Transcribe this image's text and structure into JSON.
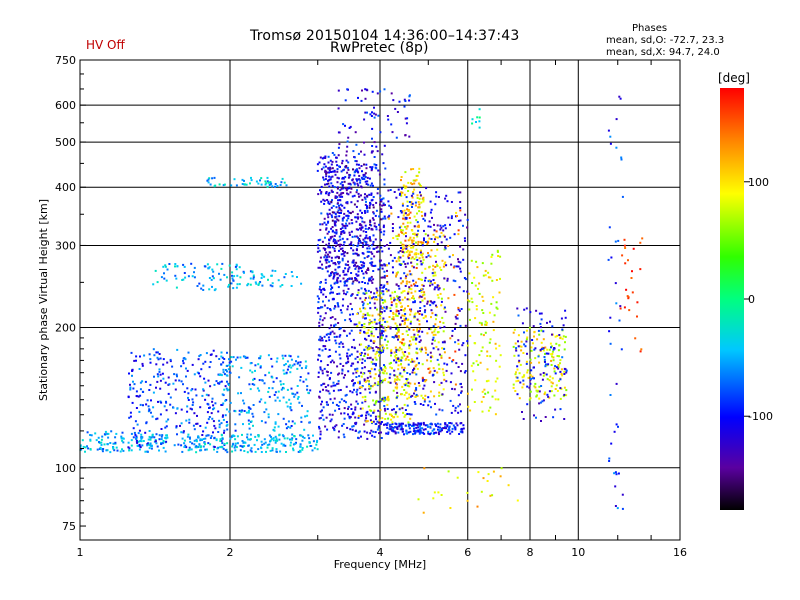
{
  "header": {
    "title_line1": "Tromsø 20150104 14:36:00–14:37:43",
    "title_line2": "RwPretec (8p)",
    "status": "HV Off"
  },
  "phases": {
    "title": "Phases",
    "line1": "mean, sd,O: -72.7, 23.3",
    "line2": "mean, sd,X:  94.7, 24.0"
  },
  "chart_data": {
    "type": "scatter",
    "xlabel": "Frequency [MHz]",
    "ylabel": "Stationary phase Virtual Height [km]",
    "xscale": "log",
    "yscale": "log",
    "xlim": [
      1,
      16
    ],
    "ylim": [
      70,
      750
    ],
    "xticks": [
      1,
      2,
      4,
      6,
      8,
      10,
      16
    ],
    "yticks": [
      75,
      100,
      200,
      300,
      400,
      500,
      600,
      750
    ],
    "grid": true,
    "colorbar": {
      "label": "[deg]",
      "ticks": [
        100,
        0,
        -100
      ],
      "range": [
        -180,
        180
      ]
    },
    "clusters": [
      {
        "x": [
          1.0,
          1.5
        ],
        "y": [
          108,
          120
        ],
        "phase": -60,
        "n": 140
      },
      {
        "x": [
          1.25,
          2.0
        ],
        "y": [
          110,
          180
        ],
        "phase": -95,
        "n": 300
      },
      {
        "x": [
          1.6,
          3.0
        ],
        "y": [
          108,
          118
        ],
        "phase": -55,
        "n": 200
      },
      {
        "x": [
          1.9,
          2.9
        ],
        "y": [
          120,
          175
        ],
        "phase": -70,
        "n": 220
      },
      {
        "x": [
          1.4,
          2.1
        ],
        "y": [
          240,
          275
        ],
        "phase": -60,
        "n": 70
      },
      {
        "x": [
          1.9,
          2.8
        ],
        "y": [
          245,
          265
        ],
        "phase": -55,
        "n": 50
      },
      {
        "x": [
          1.8,
          2.6
        ],
        "y": [
          400,
          420
        ],
        "phase": -50,
        "n": 50
      },
      {
        "x": [
          3.0,
          4.1
        ],
        "y": [
          115,
          480
        ],
        "phase": -115,
        "n": 900
      },
      {
        "x": [
          3.1,
          3.9
        ],
        "y": [
          250,
          450
        ],
        "phase": -125,
        "n": 350
      },
      {
        "x": [
          4.1,
          5.9
        ],
        "y": [
          118,
          125
        ],
        "phase": -105,
        "n": 180
      },
      {
        "x": [
          3.6,
          4.6
        ],
        "y": [
          125,
          240
        ],
        "phase": 85,
        "n": 250
      },
      {
        "x": [
          4.3,
          5.4
        ],
        "y": [
          140,
          320
        ],
        "phase": 95,
        "n": 260
      },
      {
        "x": [
          4.4,
          4.9
        ],
        "y": [
          280,
          440
        ],
        "phase": 100,
        "n": 120
      },
      {
        "x": [
          4.0,
          6.0
        ],
        "y": [
          130,
          400
        ],
        "phase": -120,
        "n": 450
      },
      {
        "x": [
          4.1,
          5.8
        ],
        "y": [
          150,
          360
        ],
        "phase": 130,
        "n": 90
      },
      {
        "x": [
          6.0,
          7.0
        ],
        "y": [
          130,
          300
        ],
        "phase": 85,
        "n": 110
      },
      {
        "x": [
          7.4,
          9.5
        ],
        "y": [
          140,
          200
        ],
        "phase": 90,
        "n": 140
      },
      {
        "x": [
          7.5,
          9.5
        ],
        "y": [
          125,
          220
        ],
        "phase": -110,
        "n": 110
      },
      {
        "x": [
          12.0,
          13.5
        ],
        "y": [
          170,
          320
        ],
        "phase": 160,
        "n": 25
      },
      {
        "x": [
          11.5,
          12.3
        ],
        "y": [
          80,
          640
        ],
        "phase": -100,
        "n": 40
      },
      {
        "x": [
          3.3,
          4.6
        ],
        "y": [
          480,
          650
        ],
        "phase": -115,
        "n": 70
      },
      {
        "x": [
          4.7,
          8.0
        ],
        "y": [
          80,
          100
        ],
        "phase": 100,
        "n": 25
      },
      {
        "x": [
          6.0,
          6.5
        ],
        "y": [
          530,
          640
        ],
        "phase": -30,
        "n": 8
      }
    ]
  }
}
